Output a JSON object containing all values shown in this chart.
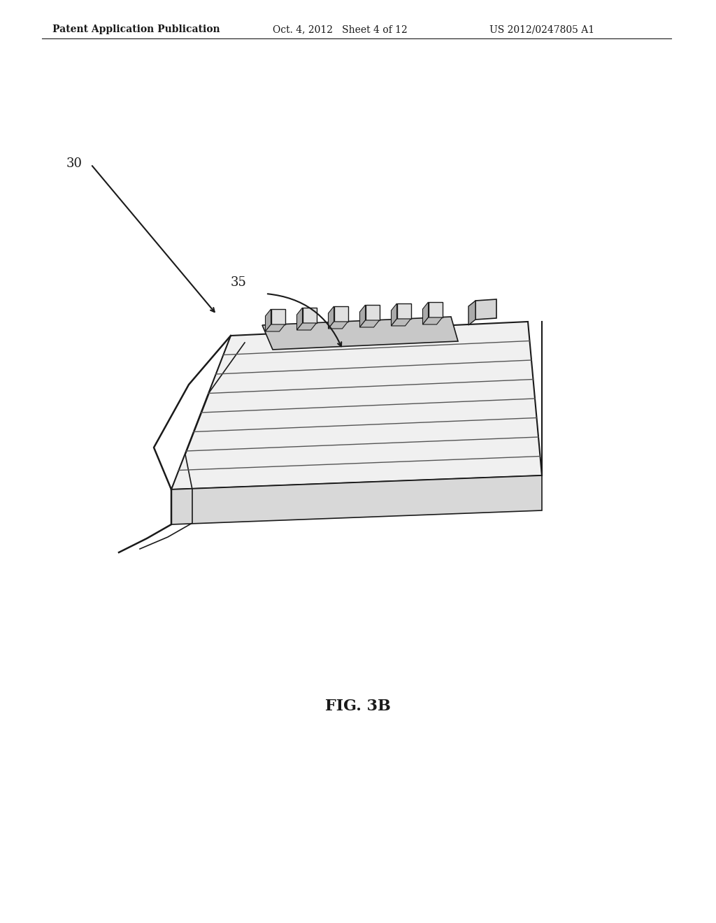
{
  "header_left": "Patent Application Publication",
  "header_middle": "Oct. 4, 2012   Sheet 4 of 12",
  "header_right": "US 2012/0247805 A1",
  "label_30": "30",
  "label_35": "35",
  "fig_caption": "FIG. 3B",
  "bg_color": "#ffffff",
  "line_color": "#1a1a1a",
  "text_color": "#1a1a1a",
  "header_fontsize": 10,
  "label_fontsize": 13,
  "caption_fontsize": 16
}
